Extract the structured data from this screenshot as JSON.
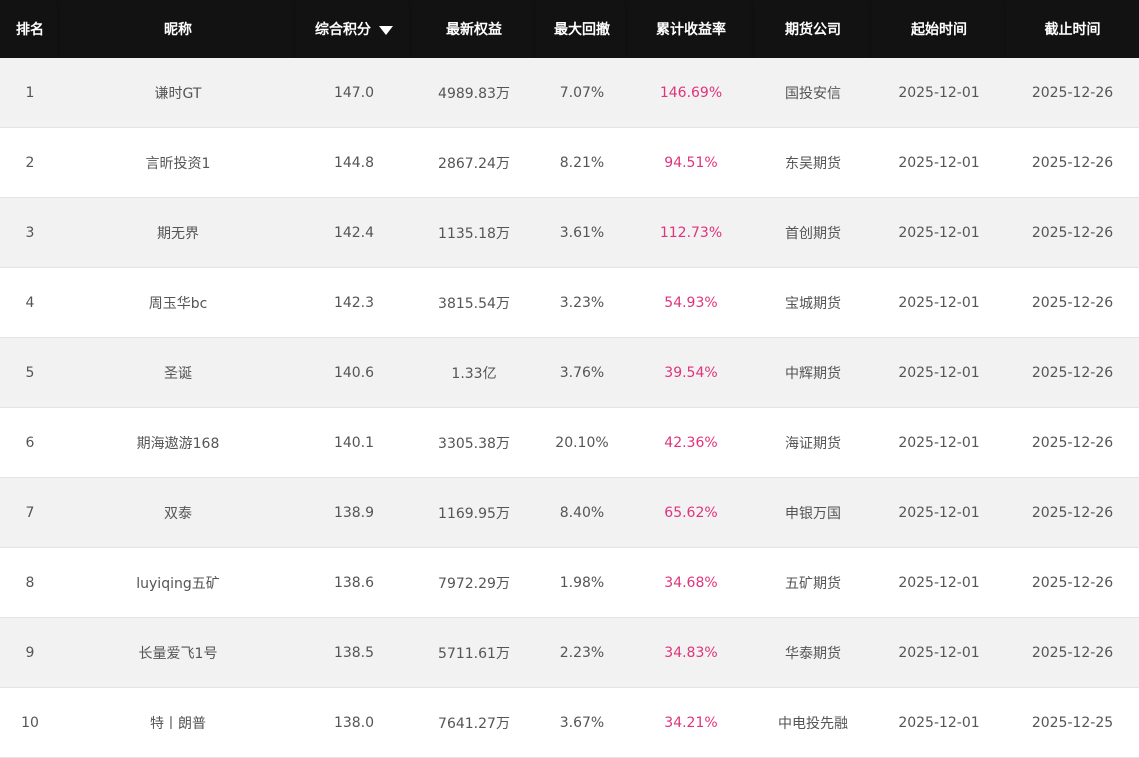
{
  "header": {
    "columns": [
      "排名",
      "昵称",
      "综合积分",
      "最新权益",
      "最大回撤",
      "累计收益率",
      "期货公司",
      "起始时间",
      "截止时间"
    ],
    "sort_column": "综合积分",
    "sort_icon": "caret-down-icon"
  },
  "colors": {
    "header_bg": "#121212",
    "return_color": "#e0337c",
    "stripe": "#f2f2f2"
  },
  "rows": [
    {
      "rank": "1",
      "name": "谦时GT",
      "score": "147.0",
      "equity": "4989.83万",
      "drawdown": "7.07%",
      "return": "146.69%",
      "company": "国投安信",
      "start": "2025-12-01",
      "end": "2025-12-26"
    },
    {
      "rank": "2",
      "name": "言昕投资1",
      "score": "144.8",
      "equity": "2867.24万",
      "drawdown": "8.21%",
      "return": "94.51%",
      "company": "东吴期货",
      "start": "2025-12-01",
      "end": "2025-12-26"
    },
    {
      "rank": "3",
      "name": "期无界",
      "score": "142.4",
      "equity": "1135.18万",
      "drawdown": "3.61%",
      "return": "112.73%",
      "company": "首创期货",
      "start": "2025-12-01",
      "end": "2025-12-26"
    },
    {
      "rank": "4",
      "name": "周玉华bc",
      "score": "142.3",
      "equity": "3815.54万",
      "drawdown": "3.23%",
      "return": "54.93%",
      "company": "宝城期货",
      "start": "2025-12-01",
      "end": "2025-12-26"
    },
    {
      "rank": "5",
      "name": "圣诞",
      "score": "140.6",
      "equity": "1.33亿",
      "drawdown": "3.76%",
      "return": "39.54%",
      "company": "中辉期货",
      "start": "2025-12-01",
      "end": "2025-12-26"
    },
    {
      "rank": "6",
      "name": "期海遨游168",
      "score": "140.1",
      "equity": "3305.38万",
      "drawdown": "20.10%",
      "return": "42.36%",
      "company": "海证期货",
      "start": "2025-12-01",
      "end": "2025-12-26"
    },
    {
      "rank": "7",
      "name": "双泰",
      "score": "138.9",
      "equity": "1169.95万",
      "drawdown": "8.40%",
      "return": "65.62%",
      "company": "申银万国",
      "start": "2025-12-01",
      "end": "2025-12-26"
    },
    {
      "rank": "8",
      "name": "luyiqing五矿",
      "score": "138.6",
      "equity": "7972.29万",
      "drawdown": "1.98%",
      "return": "34.68%",
      "company": "五矿期货",
      "start": "2025-12-01",
      "end": "2025-12-26"
    },
    {
      "rank": "9",
      "name": "长量爱飞1号",
      "score": "138.5",
      "equity": "5711.61万",
      "drawdown": "2.23%",
      "return": "34.83%",
      "company": "华泰期货",
      "start": "2025-12-01",
      "end": "2025-12-26"
    },
    {
      "rank": "10",
      "name": "特丨朗普",
      "score": "138.0",
      "equity": "7641.27万",
      "drawdown": "3.67%",
      "return": "34.21%",
      "company": "中电投先融",
      "start": "2025-12-01",
      "end": "2025-12-25"
    }
  ]
}
